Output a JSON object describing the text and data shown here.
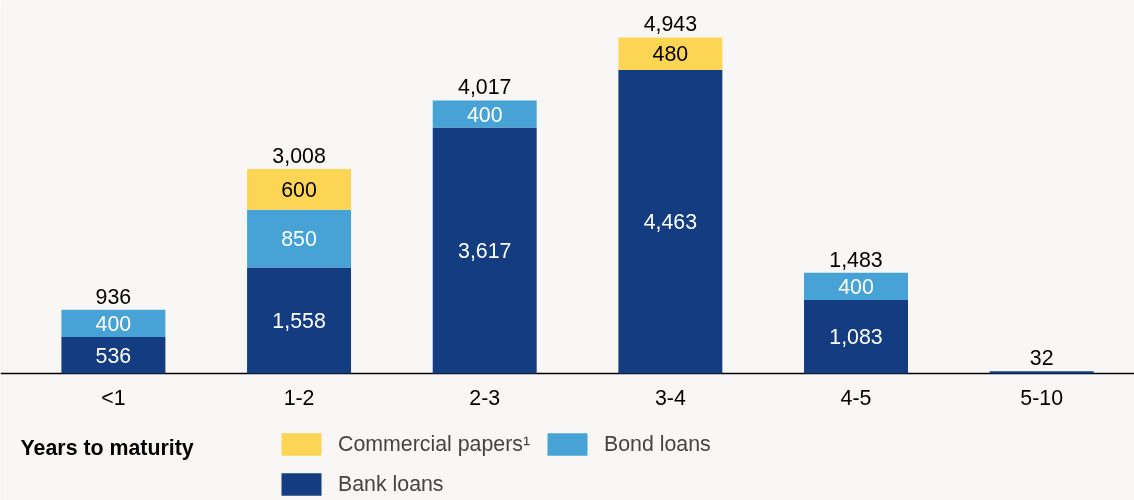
{
  "chart_data": {
    "type": "bar",
    "stacked": true,
    "xlabel": "Years to maturity",
    "categories": [
      "<1",
      "1-2",
      "2-3",
      "3-4",
      "4-5",
      "5-10"
    ],
    "series": [
      {
        "name": "Bank loans",
        "color": "#143c80",
        "values": [
          536,
          1558,
          3617,
          4463,
          1083,
          32
        ],
        "value_labels": [
          "536",
          "1,558",
          "3,617",
          "4,463",
          "1,083",
          null
        ]
      },
      {
        "name": "Bond loans",
        "color": "#47a3d6",
        "values": [
          400,
          850,
          400,
          null,
          400,
          null
        ],
        "value_labels": [
          "400",
          "850",
          "400",
          null,
          "400",
          null
        ]
      },
      {
        "name": "Commercial papers¹",
        "color": "#fdd554",
        "values": [
          null,
          600,
          null,
          480,
          null,
          null
        ],
        "value_labels": [
          null,
          "600",
          null,
          "480",
          null,
          null
        ]
      }
    ],
    "totals": [
      "936",
      "3,008",
      "4,017",
      "4,943",
      "1,483",
      "32"
    ],
    "legend": "bottom"
  }
}
